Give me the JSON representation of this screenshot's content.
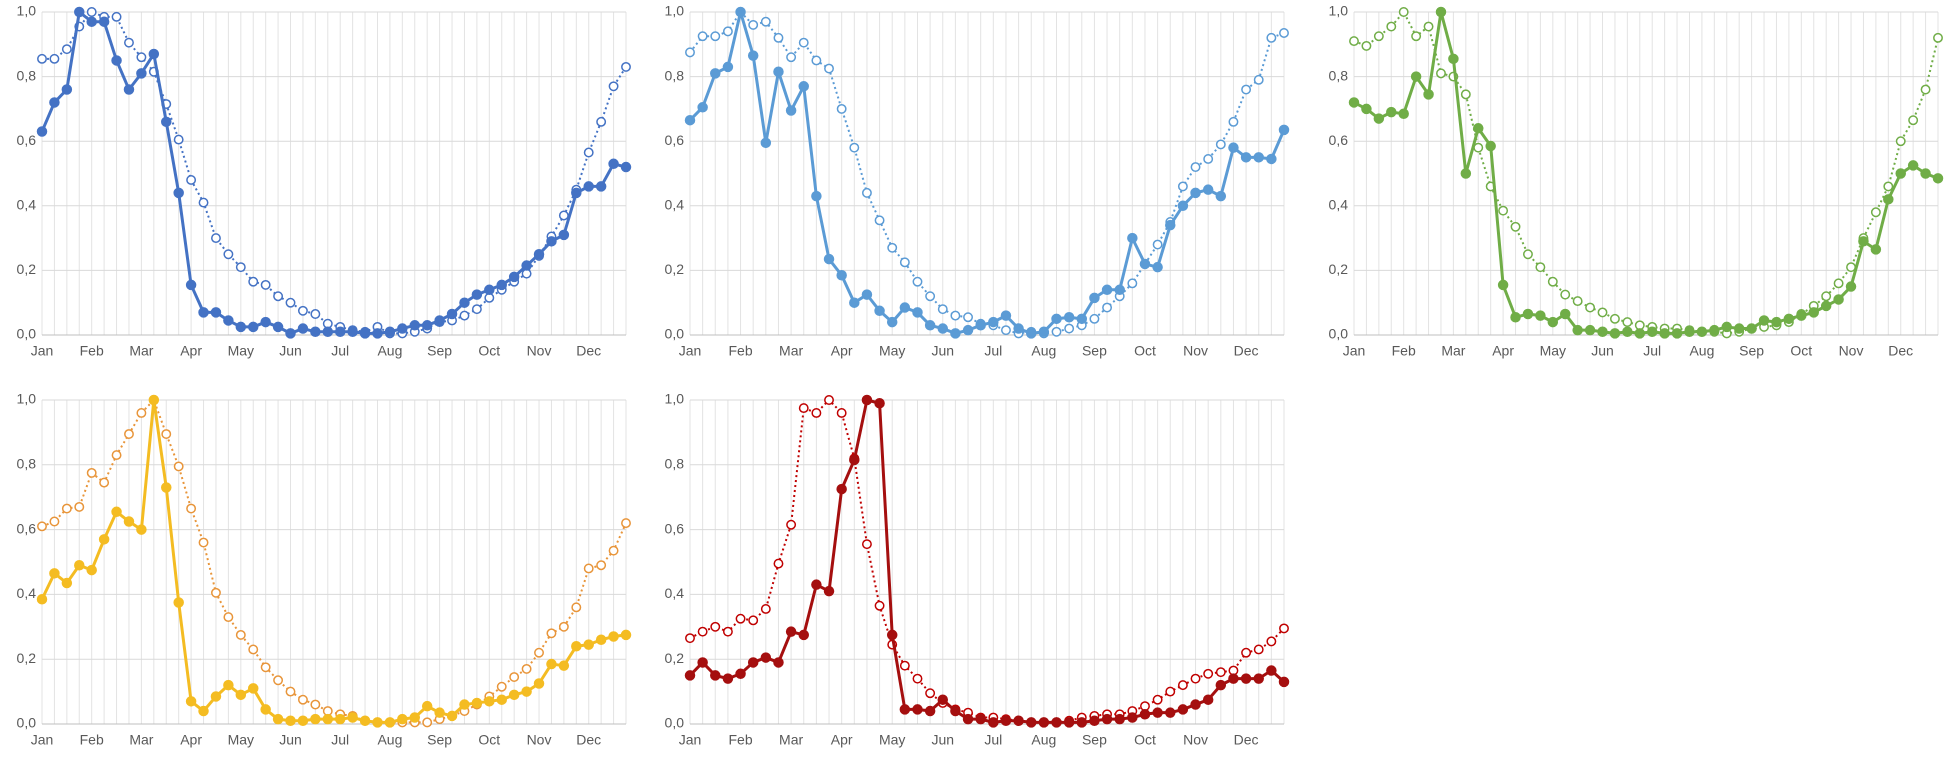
{
  "chart_data": [
    {
      "type": "line",
      "categories": [
        "Jan",
        null,
        null,
        null,
        "Feb",
        null,
        null,
        null,
        "Mar",
        null,
        null,
        null,
        "Apr",
        null,
        null,
        null,
        "May",
        null,
        null,
        null,
        "Jun",
        null,
        null,
        null,
        "Jul",
        null,
        null,
        null,
        "Aug",
        null,
        null,
        null,
        "Sep",
        null,
        null,
        null,
        "Oct",
        null,
        null,
        null,
        "Nov",
        null,
        null,
        null,
        "Dec",
        null,
        null,
        null
      ],
      "ylim": [
        0,
        1
      ],
      "yticks": [
        {
          "value": 0,
          "label": "0,0"
        },
        {
          "value": 0.2,
          "label": "0,2"
        },
        {
          "value": 0.4,
          "label": "0,4"
        },
        {
          "value": 0.6,
          "label": "0,6"
        },
        {
          "value": 0.8,
          "label": "0,8"
        },
        {
          "value": 1,
          "label": "1,0"
        }
      ],
      "grid": true,
      "series": [
        {
          "color": "#4472c4",
          "style": "solid",
          "marker": "filled",
          "values": [
            0.63,
            0.72,
            0.76,
            1.0,
            0.97,
            0.97,
            0.85,
            0.76,
            0.81,
            0.87,
            0.66,
            0.44,
            0.155,
            0.07,
            0.07,
            0.045,
            0.025,
            0.025,
            0.04,
            0.025,
            0.005,
            0.02,
            0.01,
            0.01,
            0.01,
            0.01,
            0.005,
            0.005,
            0.01,
            0.02,
            0.03,
            0.03,
            0.045,
            0.065,
            0.1,
            0.125,
            0.14,
            0.155,
            0.18,
            0.215,
            0.25,
            0.29,
            0.31,
            0.44,
            0.46,
            0.46,
            0.53,
            0.52
          ]
        },
        {
          "color": "#4472c4",
          "style": "dotted",
          "marker": "hollow",
          "values": [
            0.855,
            0.855,
            0.885,
            0.955,
            1.0,
            0.985,
            0.985,
            0.905,
            0.86,
            0.815,
            0.715,
            0.605,
            0.48,
            0.41,
            0.3,
            0.25,
            0.21,
            0.165,
            0.155,
            0.12,
            0.1,
            0.075,
            0.065,
            0.035,
            0.025,
            0.015,
            0.01,
            0.025,
            0.005,
            0.005,
            0.01,
            0.02,
            0.04,
            0.045,
            0.06,
            0.08,
            0.115,
            0.14,
            0.165,
            0.19,
            0.245,
            0.305,
            0.37,
            0.45,
            0.565,
            0.66,
            0.77,
            0.83
          ]
        }
      ]
    },
    {
      "type": "line",
      "categories": [
        "Jan",
        null,
        null,
        null,
        "Feb",
        null,
        null,
        null,
        "Mar",
        null,
        null,
        null,
        "Apr",
        null,
        null,
        null,
        "May",
        null,
        null,
        null,
        "Jun",
        null,
        null,
        null,
        "Jul",
        null,
        null,
        null,
        "Aug",
        null,
        null,
        null,
        "Sep",
        null,
        null,
        null,
        "Oct",
        null,
        null,
        null,
        "Nov",
        null,
        null,
        null,
        "Dec",
        null,
        null,
        null
      ],
      "ylim": [
        0,
        1
      ],
      "yticks": [
        {
          "value": 0,
          "label": "0,0"
        },
        {
          "value": 0.2,
          "label": "0,2"
        },
        {
          "value": 0.4,
          "label": "0,4"
        },
        {
          "value": 0.6,
          "label": "0,6"
        },
        {
          "value": 0.8,
          "label": "0,8"
        },
        {
          "value": 1,
          "label": "1,0"
        }
      ],
      "grid": true,
      "series": [
        {
          "color": "#5b9bd5",
          "style": "solid",
          "marker": "filled",
          "values": [
            0.665,
            0.705,
            0.81,
            0.83,
            1.0,
            0.865,
            0.595,
            0.815,
            0.695,
            0.77,
            0.43,
            0.235,
            0.185,
            0.1,
            0.125,
            0.075,
            0.04,
            0.085,
            0.07,
            0.03,
            0.02,
            0.005,
            0.015,
            0.03,
            0.04,
            0.06,
            0.02,
            0.005,
            0.01,
            0.05,
            0.055,
            0.05,
            0.115,
            0.14,
            0.14,
            0.3,
            0.22,
            0.21,
            0.34,
            0.4,
            0.44,
            0.45,
            0.43,
            0.58,
            0.55,
            0.55,
            0.545,
            0.635
          ]
        },
        {
          "color": "#5b9bd5",
          "style": "dotted",
          "marker": "hollow",
          "values": [
            0.875,
            0.925,
            0.925,
            0.94,
            1.0,
            0.96,
            0.97,
            0.92,
            0.86,
            0.905,
            0.85,
            0.825,
            0.7,
            0.58,
            0.44,
            0.355,
            0.27,
            0.225,
            0.165,
            0.12,
            0.08,
            0.06,
            0.055,
            0.035,
            0.03,
            0.015,
            0.005,
            0.01,
            0.005,
            0.01,
            0.02,
            0.03,
            0.05,
            0.085,
            0.12,
            0.16,
            0.22,
            0.28,
            0.35,
            0.46,
            0.52,
            0.545,
            0.59,
            0.66,
            0.76,
            0.79,
            0.92,
            0.935
          ]
        }
      ]
    },
    {
      "type": "line",
      "categories": [
        "Jan",
        null,
        null,
        null,
        "Feb",
        null,
        null,
        null,
        "Mar",
        null,
        null,
        null,
        "Apr",
        null,
        null,
        null,
        "May",
        null,
        null,
        null,
        "Jun",
        null,
        null,
        null,
        "Jul",
        null,
        null,
        null,
        "Aug",
        null,
        null,
        null,
        "Sep",
        null,
        null,
        null,
        "Oct",
        null,
        null,
        null,
        "Nov",
        null,
        null,
        null,
        "Dec",
        null,
        null,
        null
      ],
      "ylim": [
        0,
        1
      ],
      "yticks": [
        {
          "value": 0,
          "label": "0,0"
        },
        {
          "value": 0.2,
          "label": "0,2"
        },
        {
          "value": 0.4,
          "label": "0,4"
        },
        {
          "value": 0.6,
          "label": "0,6"
        },
        {
          "value": 0.8,
          "label": "0,8"
        },
        {
          "value": 1,
          "label": "1,0"
        }
      ],
      "grid": true,
      "series": [
        {
          "color": "#70ad47",
          "style": "solid",
          "marker": "filled",
          "values": [
            0.72,
            0.7,
            0.67,
            0.69,
            0.685,
            0.8,
            0.745,
            1.0,
            0.855,
            0.5,
            0.64,
            0.585,
            0.155,
            0.055,
            0.065,
            0.06,
            0.04,
            0.065,
            0.015,
            0.015,
            0.01,
            0.005,
            0.01,
            0.005,
            0.01,
            0.005,
            0.005,
            0.01,
            0.01,
            0.015,
            0.025,
            0.02,
            0.02,
            0.045,
            0.04,
            0.05,
            0.06,
            0.07,
            0.09,
            0.11,
            0.15,
            0.29,
            0.265,
            0.42,
            0.5,
            0.525,
            0.5,
            0.485
          ]
        },
        {
          "color": "#70ad47",
          "style": "dotted",
          "marker": "hollow",
          "values": [
            0.91,
            0.895,
            0.925,
            0.955,
            1.0,
            0.925,
            0.955,
            0.81,
            0.8,
            0.745,
            0.58,
            0.46,
            0.385,
            0.335,
            0.25,
            0.21,
            0.165,
            0.125,
            0.105,
            0.085,
            0.07,
            0.05,
            0.04,
            0.03,
            0.025,
            0.02,
            0.02,
            0.015,
            0.01,
            0.01,
            0.005,
            0.01,
            0.02,
            0.025,
            0.03,
            0.04,
            0.065,
            0.09,
            0.12,
            0.16,
            0.21,
            0.3,
            0.38,
            0.46,
            0.6,
            0.665,
            0.76,
            0.92
          ]
        }
      ]
    },
    {
      "type": "line",
      "categories": [
        "Jan",
        null,
        null,
        null,
        "Feb",
        null,
        null,
        null,
        "Mar",
        null,
        null,
        null,
        "Apr",
        null,
        null,
        null,
        "May",
        null,
        null,
        null,
        "Jun",
        null,
        null,
        null,
        "Jul",
        null,
        null,
        null,
        "Aug",
        null,
        null,
        null,
        "Sep",
        null,
        null,
        null,
        "Oct",
        null,
        null,
        null,
        "Nov",
        null,
        null,
        null,
        "Dec",
        null,
        null,
        null
      ],
      "ylim": [
        0,
        1
      ],
      "yticks": [
        {
          "value": 0,
          "label": "0,0"
        },
        {
          "value": 0.2,
          "label": "0,2"
        },
        {
          "value": 0.4,
          "label": "0,4"
        },
        {
          "value": 0.6,
          "label": "0,6"
        },
        {
          "value": 0.8,
          "label": "0,8"
        },
        {
          "value": 1,
          "label": "1,0"
        }
      ],
      "grid": true,
      "series": [
        {
          "color": "#f4bc22",
          "style": "solid",
          "marker": "filled",
          "values": [
            0.385,
            0.465,
            0.435,
            0.49,
            0.475,
            0.57,
            0.655,
            0.625,
            0.6,
            1.0,
            0.73,
            0.375,
            0.07,
            0.04,
            0.085,
            0.12,
            0.09,
            0.11,
            0.045,
            0.015,
            0.01,
            0.01,
            0.015,
            0.015,
            0.015,
            0.02,
            0.01,
            0.005,
            0.005,
            0.015,
            0.02,
            0.055,
            0.035,
            0.025,
            0.06,
            0.065,
            0.07,
            0.075,
            0.09,
            0.1,
            0.125,
            0.185,
            0.18,
            0.24,
            0.245,
            0.26,
            0.27,
            0.275
          ]
        },
        {
          "color": "#e8953a",
          "style": "dotted",
          "marker": "hollow",
          "values": [
            0.61,
            0.625,
            0.665,
            0.67,
            0.775,
            0.745,
            0.83,
            0.895,
            0.96,
            1.0,
            0.895,
            0.795,
            0.665,
            0.56,
            0.405,
            0.33,
            0.275,
            0.23,
            0.175,
            0.135,
            0.1,
            0.075,
            0.06,
            0.04,
            0.03,
            0.025,
            0.01,
            0.005,
            0.005,
            0.005,
            0.005,
            0.005,
            0.015,
            0.025,
            0.04,
            0.06,
            0.085,
            0.115,
            0.145,
            0.17,
            0.22,
            0.28,
            0.3,
            0.36,
            0.48,
            0.49,
            0.535,
            0.62
          ]
        }
      ]
    },
    {
      "type": "line",
      "categories": [
        "Jan",
        null,
        null,
        null,
        "Feb",
        null,
        null,
        null,
        "Mar",
        null,
        null,
        null,
        "Apr",
        null,
        null,
        null,
        "May",
        null,
        null,
        null,
        "Jun",
        null,
        null,
        null,
        "Jul",
        null,
        null,
        null,
        "Aug",
        null,
        null,
        null,
        "Sep",
        null,
        null,
        null,
        "Oct",
        null,
        null,
        null,
        "Nov",
        null,
        null,
        null,
        "Dec",
        null,
        null,
        null
      ],
      "ylim": [
        0,
        1
      ],
      "yticks": [
        {
          "value": 0,
          "label": "0,0"
        },
        {
          "value": 0.2,
          "label": "0,2"
        },
        {
          "value": 0.4,
          "label": "0,4"
        },
        {
          "value": 0.6,
          "label": "0,6"
        },
        {
          "value": 0.8,
          "label": "0,8"
        },
        {
          "value": 1,
          "label": "1,0"
        }
      ],
      "grid": true,
      "series": [
        {
          "color": "#a50f0f",
          "style": "solid",
          "marker": "filled",
          "values": [
            0.15,
            0.19,
            0.15,
            0.14,
            0.155,
            0.19,
            0.205,
            0.19,
            0.285,
            0.275,
            0.43,
            0.41,
            0.725,
            0.815,
            1.0,
            0.99,
            0.275,
            0.045,
            0.045,
            0.04,
            0.075,
            0.04,
            0.015,
            0.015,
            0.005,
            0.01,
            0.01,
            0.005,
            0.005,
            0.005,
            0.005,
            0.005,
            0.01,
            0.015,
            0.015,
            0.02,
            0.03,
            0.035,
            0.035,
            0.045,
            0.06,
            0.075,
            0.12,
            0.14,
            0.14,
            0.14,
            0.165,
            0.13
          ]
        },
        {
          "color": "#c00000",
          "style": "dotted",
          "marker": "hollow",
          "values": [
            0.265,
            0.285,
            0.3,
            0.285,
            0.325,
            0.32,
            0.355,
            0.495,
            0.615,
            0.975,
            0.96,
            1.0,
            0.96,
            0.82,
            0.555,
            0.365,
            0.245,
            0.18,
            0.14,
            0.095,
            0.065,
            0.045,
            0.035,
            0.02,
            0.02,
            0.015,
            0.01,
            0.005,
            0.005,
            0.005,
            0.01,
            0.02,
            0.025,
            0.03,
            0.03,
            0.04,
            0.055,
            0.075,
            0.1,
            0.12,
            0.14,
            0.155,
            0.16,
            0.165,
            0.22,
            0.23,
            0.255,
            0.295
          ]
        }
      ]
    }
  ]
}
